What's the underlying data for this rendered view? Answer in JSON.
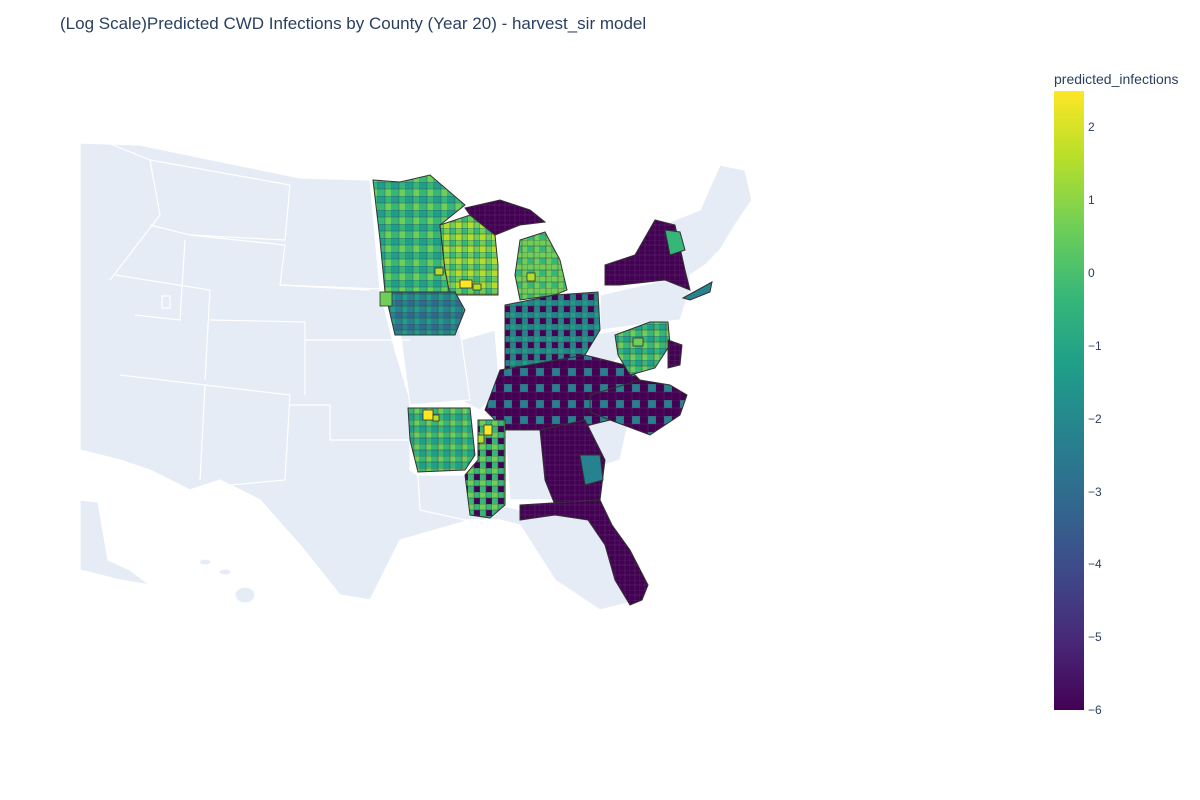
{
  "title": "(Log Scale)Predicted CWD Infections by County (Year 20) - harvest_sir model",
  "colorbar": {
    "title": "predicted_infections",
    "range": [
      -6,
      2.5
    ],
    "ticks": [
      {
        "value": 2,
        "label": "2"
      },
      {
        "value": 1,
        "label": "1"
      },
      {
        "value": 0,
        "label": "0"
      },
      {
        "value": -1,
        "label": "−1"
      },
      {
        "value": -2,
        "label": "−2"
      },
      {
        "value": -3,
        "label": "−3"
      },
      {
        "value": -4,
        "label": "−4"
      },
      {
        "value": -5,
        "label": "−5"
      },
      {
        "value": -6,
        "label": "−6"
      }
    ],
    "colorscale": [
      "#440154",
      "#482878",
      "#3e4989",
      "#31688e",
      "#26828e",
      "#1f9e89",
      "#35b779",
      "#6ece58",
      "#b5de2b",
      "#fde725"
    ]
  },
  "colors": {
    "land": "#e5ecf6",
    "state_border": "#ffffff",
    "county_border": "#444444"
  },
  "chart_data": {
    "type": "choropleth",
    "scope": "usa",
    "geography": "county",
    "value_field": "predicted_infections",
    "value_scale": "log10",
    "regions": [
      {
        "state": "Minnesota",
        "typical_value": -0.5,
        "min": -6,
        "max": 2
      },
      {
        "state": "Wisconsin",
        "typical_value": 0.3,
        "min": -2,
        "max": 2.3
      },
      {
        "state": "Iowa",
        "typical_value": -1.2,
        "min": -6,
        "max": 1
      },
      {
        "state": "Michigan",
        "typical_value": 0.5,
        "min": -6,
        "max": 2.2
      },
      {
        "state": "Ohio",
        "typical_value": -1.5,
        "min": -6,
        "max": 0
      },
      {
        "state": "New York",
        "typical_value": -6,
        "min": -6,
        "max": -0.5
      },
      {
        "state": "Kentucky",
        "typical_value": -5.5,
        "min": -6,
        "max": -1
      },
      {
        "state": "Tennessee",
        "typical_value": -5.8,
        "min": -6,
        "max": -1
      },
      {
        "state": "Virginia",
        "typical_value": -2,
        "min": -6,
        "max": 1
      },
      {
        "state": "North Carolina",
        "typical_value": -5.5,
        "min": -6,
        "max": -1
      },
      {
        "state": "Arkansas",
        "typical_value": -0.3,
        "min": -1.5,
        "max": 2.3
      },
      {
        "state": "Mississippi",
        "typical_value": -0.5,
        "min": -6,
        "max": 2.2
      },
      {
        "state": "Georgia",
        "typical_value": -5.8,
        "min": -6,
        "max": -1
      },
      {
        "state": "Florida",
        "typical_value": -6,
        "min": -6,
        "max": -6
      }
    ]
  }
}
